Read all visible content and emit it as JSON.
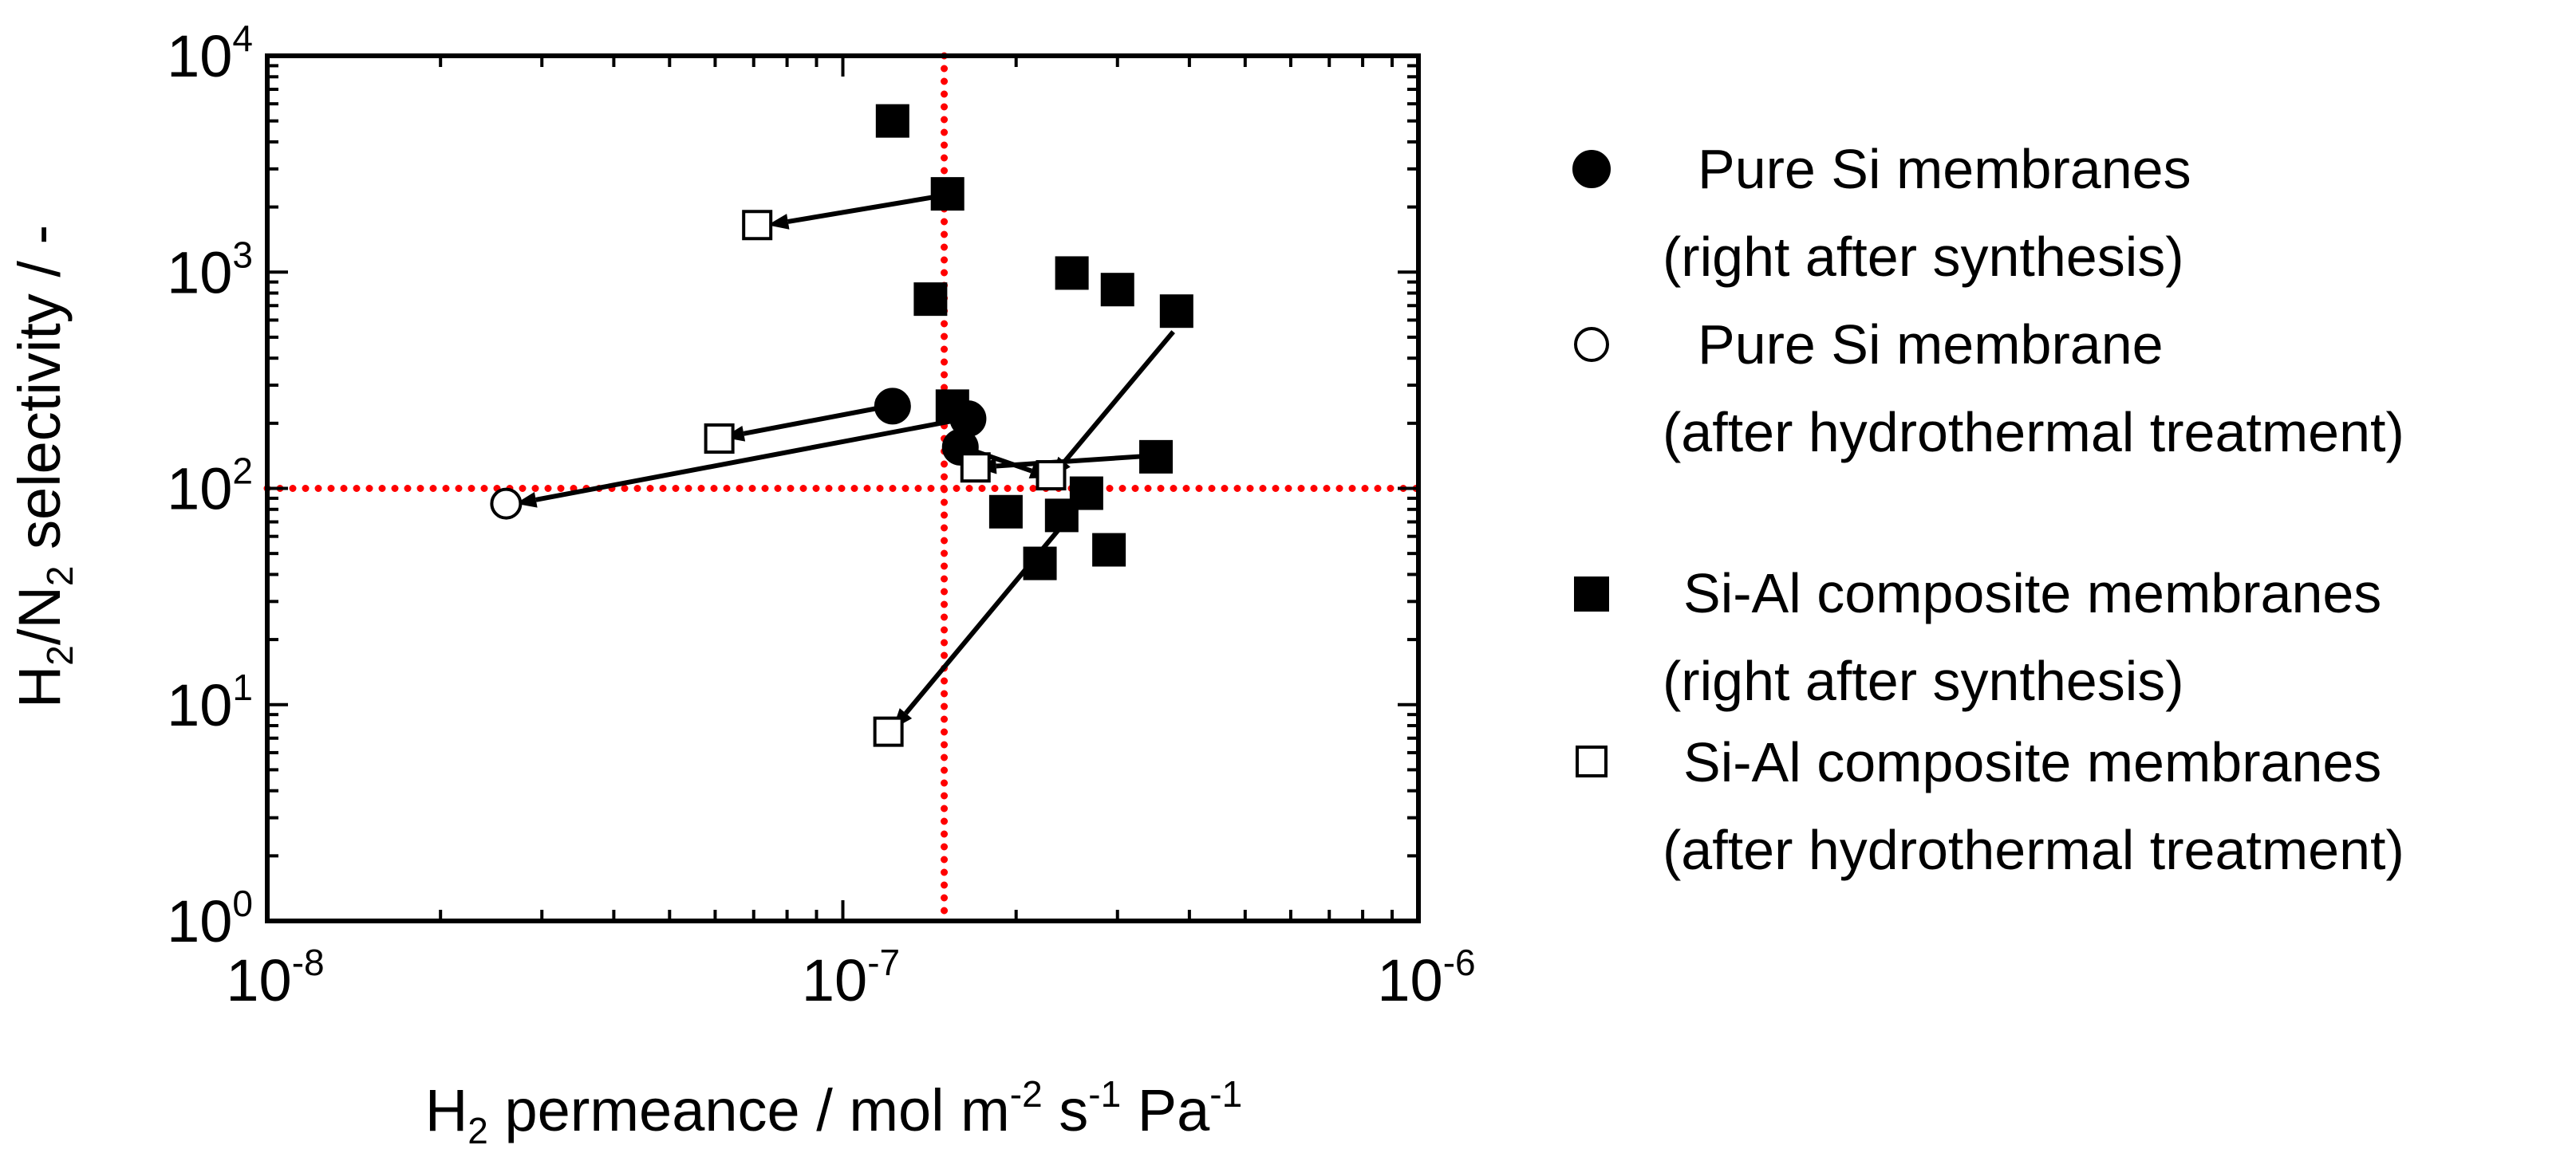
{
  "chart_data": {
    "type": "scatter",
    "x_scale": "log",
    "y_scale": "log",
    "xlim": [
      1e-08,
      1e-06
    ],
    "ylim": [
      1,
      10000
    ],
    "x_ticks": [
      {
        "value": 1e-08,
        "base": "10",
        "exp": "-8"
      },
      {
        "value": 1e-07,
        "base": "10",
        "exp": "-7"
      },
      {
        "value": 1e-06,
        "base": "10",
        "exp": "-6"
      }
    ],
    "y_ticks": [
      {
        "value": 1,
        "base": "10",
        "exp": "0"
      },
      {
        "value": 10,
        "base": "10",
        "exp": "1"
      },
      {
        "value": 100,
        "base": "10",
        "exp": "2"
      },
      {
        "value": 1000,
        "base": "10",
        "exp": "3"
      },
      {
        "value": 10000,
        "base": "10",
        "exp": "4"
      }
    ],
    "xlabel": {
      "p1": "H",
      "s1": "2",
      "p2": " permeance / mol m",
      "s2": "-2",
      "p3": " s",
      "s3": "-1",
      "p4": " Pa",
      "s4": "-1"
    },
    "ylabel": {
      "p1": "H",
      "s1": "2",
      "p2": "/N",
      "s2": "2",
      "p3": " selectivity / -"
    },
    "reference_lines": {
      "x": 1.5e-07,
      "y": 100,
      "color": "#ff0000"
    },
    "series": [
      {
        "name": "Pure Si membranes",
        "name2": "(right after synthesis)",
        "marker": "circle",
        "filled": true,
        "points": [
          [
            1.22e-07,
            240
          ],
          [
            1.65e-07,
            210
          ],
          [
            1.6e-07,
            155
          ]
        ]
      },
      {
        "name": "Pure Si membrane",
        "name2": "(after hydrothermal treatment)",
        "marker": "circle",
        "filled": false,
        "points": [
          [
            2.6e-08,
            85
          ]
        ]
      },
      {
        "name": "Si-Al composite membranes",
        "name2": "(right after synthesis)",
        "marker": "square",
        "filled": true,
        "points": [
          [
            1.22e-07,
            5000
          ],
          [
            1.52e-07,
            2300
          ],
          [
            1.42e-07,
            750
          ],
          [
            1.55e-07,
            240
          ],
          [
            2.5e-07,
            990
          ],
          [
            3e-07,
            830
          ],
          [
            3.8e-07,
            660
          ],
          [
            3.5e-07,
            140
          ],
          [
            2.65e-07,
            95
          ],
          [
            2.4e-07,
            75
          ],
          [
            1.92e-07,
            78
          ],
          [
            2.2e-07,
            45
          ],
          [
            2.9e-07,
            52
          ]
        ]
      },
      {
        "name": "Si-Al composite membranes",
        "name2": "(after hydrothermal treatment)",
        "marker": "square",
        "filled": false,
        "points": [
          [
            7.1e-08,
            1650
          ],
          [
            6.1e-08,
            170
          ],
          [
            1.7e-07,
            125
          ],
          [
            2.3e-07,
            115
          ],
          [
            1.2e-07,
            7.5
          ]
        ]
      }
    ],
    "arrows": [
      {
        "from": [
          1.48e-07,
          2250
        ],
        "to": [
          7.4e-08,
          1650
        ]
      },
      {
        "from": [
          1.2e-07,
          240
        ],
        "to": [
          6.2e-08,
          172
        ]
      },
      {
        "from": [
          1.55e-07,
          205
        ],
        "to": [
          2.7e-08,
          85
        ]
      },
      {
        "from": [
          3.5e-07,
          142
        ],
        "to": [
          1.7e-07,
          125
        ]
      },
      {
        "from": [
          3.75e-07,
          530
        ],
        "to": [
          2.3e-07,
          112
        ]
      },
      {
        "from": [
          1.62e-07,
          155
        ],
        "to": [
          2.3e-07,
          112
        ]
      },
      {
        "from": [
          2.65e-07,
          92
        ],
        "to": [
          1.22e-07,
          7.7
        ]
      }
    ]
  }
}
